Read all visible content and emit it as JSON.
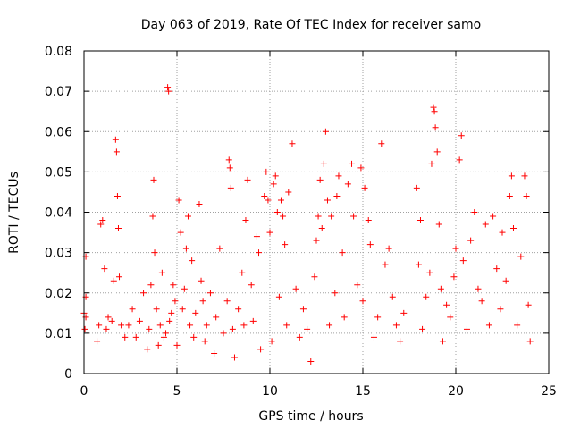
{
  "chart_data": {
    "type": "scatter",
    "title": "Day 063 of 2019, Rate Of TEC Index for receiver samo",
    "xlabel": "GPS time / hours",
    "ylabel": "ROTI / TECUs",
    "xlim": [
      0,
      25
    ],
    "ylim": [
      0,
      0.08
    ],
    "x_ticks": [
      0,
      5,
      10,
      15,
      20,
      25
    ],
    "x_tick_labels": [
      "0",
      "5",
      "10",
      "15",
      "20",
      "25"
    ],
    "y_ticks": [
      0,
      0.01,
      0.02,
      0.03,
      0.04,
      0.05,
      0.06,
      0.07,
      0.08
    ],
    "y_tick_labels": [
      "0",
      "0.01",
      "0.02",
      "0.03",
      "0.04",
      "0.05",
      "0.06",
      "0.07",
      "0.08"
    ],
    "grid": true,
    "marker": "+",
    "color": "#ff0000",
    "series": [
      {
        "name": "ROTI",
        "points": [
          [
            0.0,
            0.015
          ],
          [
            0.05,
            0.011
          ],
          [
            0.1,
            0.014
          ],
          [
            0.1,
            0.029
          ],
          [
            0.1,
            0.019
          ],
          [
            0.7,
            0.008
          ],
          [
            0.8,
            0.012
          ],
          [
            0.9,
            0.037
          ],
          [
            1.0,
            0.038
          ],
          [
            1.1,
            0.026
          ],
          [
            1.2,
            0.011
          ],
          [
            1.3,
            0.014
          ],
          [
            1.5,
            0.013
          ],
          [
            1.6,
            0.023
          ],
          [
            1.7,
            0.058
          ],
          [
            1.75,
            0.055
          ],
          [
            1.8,
            0.044
          ],
          [
            1.85,
            0.036
          ],
          [
            1.9,
            0.024
          ],
          [
            2.0,
            0.012
          ],
          [
            2.2,
            0.009
          ],
          [
            2.4,
            0.012
          ],
          [
            2.6,
            0.016
          ],
          [
            2.8,
            0.009
          ],
          [
            3.0,
            0.013
          ],
          [
            3.2,
            0.02
          ],
          [
            3.4,
            0.006
          ],
          [
            3.5,
            0.011
          ],
          [
            3.6,
            0.022
          ],
          [
            3.7,
            0.039
          ],
          [
            3.75,
            0.048
          ],
          [
            3.8,
            0.03
          ],
          [
            3.9,
            0.016
          ],
          [
            4.0,
            0.007
          ],
          [
            4.1,
            0.012
          ],
          [
            4.2,
            0.025
          ],
          [
            4.3,
            0.009
          ],
          [
            4.4,
            0.01
          ],
          [
            4.5,
            0.071
          ],
          [
            4.55,
            0.07
          ],
          [
            4.6,
            0.013
          ],
          [
            4.7,
            0.015
          ],
          [
            4.8,
            0.022
          ],
          [
            4.9,
            0.018
          ],
          [
            5.0,
            0.007
          ],
          [
            5.1,
            0.043
          ],
          [
            5.2,
            0.035
          ],
          [
            5.3,
            0.016
          ],
          [
            5.4,
            0.021
          ],
          [
            5.5,
            0.031
          ],
          [
            5.6,
            0.039
          ],
          [
            5.7,
            0.012
          ],
          [
            5.8,
            0.028
          ],
          [
            5.9,
            0.009
          ],
          [
            6.0,
            0.015
          ],
          [
            6.2,
            0.042
          ],
          [
            6.3,
            0.023
          ],
          [
            6.4,
            0.018
          ],
          [
            6.5,
            0.008
          ],
          [
            6.6,
            0.012
          ],
          [
            6.8,
            0.02
          ],
          [
            7.0,
            0.005
          ],
          [
            7.1,
            0.014
          ],
          [
            7.3,
            0.031
          ],
          [
            7.5,
            0.01
          ],
          [
            7.7,
            0.018
          ],
          [
            7.8,
            0.053
          ],
          [
            7.85,
            0.051
          ],
          [
            7.9,
            0.046
          ],
          [
            8.0,
            0.011
          ],
          [
            8.1,
            0.004
          ],
          [
            8.3,
            0.016
          ],
          [
            8.5,
            0.025
          ],
          [
            8.6,
            0.012
          ],
          [
            8.7,
            0.038
          ],
          [
            8.8,
            0.048
          ],
          [
            9.0,
            0.022
          ],
          [
            9.1,
            0.013
          ],
          [
            9.3,
            0.034
          ],
          [
            9.4,
            0.03
          ],
          [
            9.5,
            0.006
          ],
          [
            9.7,
            0.044
          ],
          [
            9.8,
            0.05
          ],
          [
            9.9,
            0.043
          ],
          [
            10.0,
            0.035
          ],
          [
            10.1,
            0.008
          ],
          [
            10.2,
            0.047
          ],
          [
            10.3,
            0.049
          ],
          [
            10.4,
            0.04
          ],
          [
            10.5,
            0.019
          ],
          [
            10.6,
            0.043
          ],
          [
            10.7,
            0.039
          ],
          [
            10.8,
            0.032
          ],
          [
            10.9,
            0.012
          ],
          [
            11.0,
            0.045
          ],
          [
            11.2,
            0.057
          ],
          [
            11.4,
            0.021
          ],
          [
            11.6,
            0.009
          ],
          [
            11.8,
            0.016
          ],
          [
            12.0,
            0.011
          ],
          [
            12.2,
            0.003
          ],
          [
            12.4,
            0.024
          ],
          [
            12.5,
            0.033
          ],
          [
            12.6,
            0.039
          ],
          [
            12.7,
            0.048
          ],
          [
            12.8,
            0.036
          ],
          [
            12.9,
            0.052
          ],
          [
            13.0,
            0.06
          ],
          [
            13.1,
            0.043
          ],
          [
            13.2,
            0.012
          ],
          [
            13.3,
            0.039
          ],
          [
            13.5,
            0.02
          ],
          [
            13.6,
            0.044
          ],
          [
            13.7,
            0.049
          ],
          [
            13.9,
            0.03
          ],
          [
            14.0,
            0.014
          ],
          [
            14.2,
            0.047
          ],
          [
            14.4,
            0.052
          ],
          [
            14.5,
            0.039
          ],
          [
            14.7,
            0.022
          ],
          [
            14.9,
            0.051
          ],
          [
            15.0,
            0.018
          ],
          [
            15.1,
            0.046
          ],
          [
            15.3,
            0.038
          ],
          [
            15.4,
            0.032
          ],
          [
            15.6,
            0.009
          ],
          [
            15.8,
            0.014
          ],
          [
            16.0,
            0.057
          ],
          [
            16.2,
            0.027
          ],
          [
            16.4,
            0.031
          ],
          [
            16.6,
            0.019
          ],
          [
            16.8,
            0.012
          ],
          [
            17.0,
            0.008
          ],
          [
            17.2,
            0.015
          ],
          [
            17.9,
            0.046
          ],
          [
            18.0,
            0.027
          ],
          [
            18.1,
            0.038
          ],
          [
            18.2,
            0.011
          ],
          [
            18.4,
            0.019
          ],
          [
            18.6,
            0.025
          ],
          [
            18.7,
            0.052
          ],
          [
            18.8,
            0.066
          ],
          [
            18.85,
            0.065
          ],
          [
            18.9,
            0.061
          ],
          [
            19.0,
            0.055
          ],
          [
            19.1,
            0.037
          ],
          [
            19.2,
            0.021
          ],
          [
            19.3,
            0.008
          ],
          [
            19.5,
            0.017
          ],
          [
            19.7,
            0.014
          ],
          [
            19.9,
            0.024
          ],
          [
            20.0,
            0.031
          ],
          [
            20.2,
            0.053
          ],
          [
            20.3,
            0.059
          ],
          [
            20.4,
            0.028
          ],
          [
            20.6,
            0.011
          ],
          [
            20.8,
            0.033
          ],
          [
            21.0,
            0.04
          ],
          [
            21.2,
            0.021
          ],
          [
            21.4,
            0.018
          ],
          [
            21.6,
            0.037
          ],
          [
            21.8,
            0.012
          ],
          [
            22.0,
            0.039
          ],
          [
            22.2,
            0.026
          ],
          [
            22.4,
            0.016
          ],
          [
            22.5,
            0.035
          ],
          [
            22.7,
            0.023
          ],
          [
            22.9,
            0.044
          ],
          [
            23.0,
            0.049
          ],
          [
            23.1,
            0.036
          ],
          [
            23.3,
            0.012
          ],
          [
            23.5,
            0.029
          ],
          [
            23.7,
            0.049
          ],
          [
            23.8,
            0.044
          ],
          [
            23.9,
            0.017
          ],
          [
            24.0,
            0.008
          ]
        ]
      }
    ]
  }
}
